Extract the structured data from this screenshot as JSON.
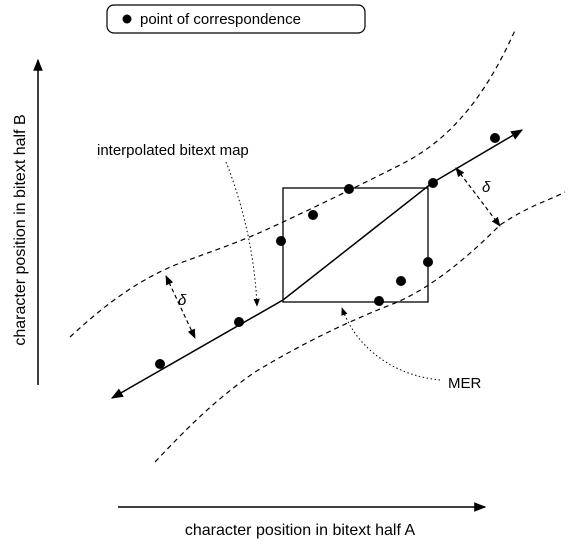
{
  "legend": {
    "label": "point of correspondence"
  },
  "labels": {
    "map": "interpolated bitext map",
    "mer": "MER",
    "delta_left": "δ",
    "delta_right": "δ"
  },
  "axes": {
    "x_label": "character position in bitext half A",
    "y_label": "character position in bitext half B"
  }
}
